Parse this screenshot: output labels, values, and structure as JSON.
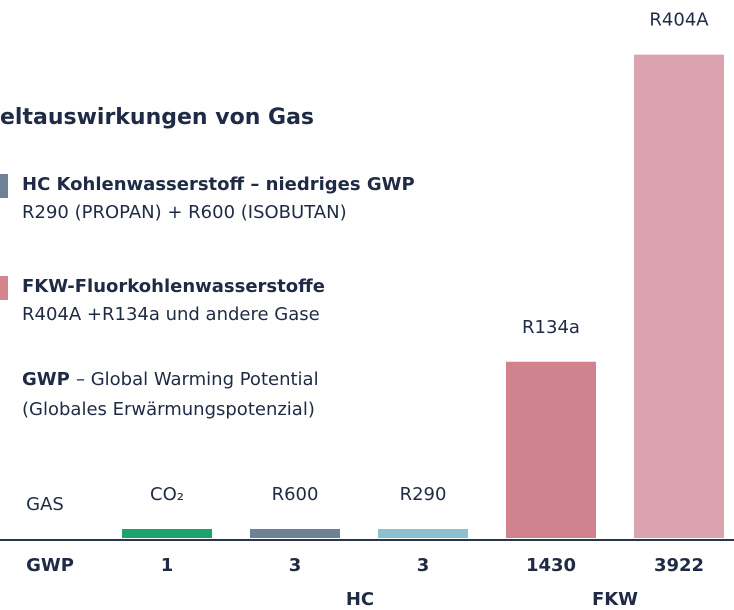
{
  "chart_data": {
    "type": "bar",
    "title": "eltauswirkungen von Gas",
    "legend": [
      {
        "name": "HC Kohlenwasserstoff – niedriges GWP",
        "text": "R290 (PROPAN) + R600 (ISOBUTAN)",
        "color": "#6e8296"
      },
      {
        "name": "FKW-Fluorkohlenwasserstoffe",
        "text": "R404A +R134a und andere Gase",
        "color": "#d4848f"
      }
    ],
    "note": {
      "term": "GWP",
      "text": "– Global Warming Potential",
      "text2": "(Globales Erwärmungspotenzial)"
    },
    "category_header": "GAS",
    "value_header": "GWP",
    "categories": [
      "CO₂",
      "R600",
      "R290",
      "R134a",
      "R404A"
    ],
    "values": [
      1,
      3,
      3,
      1430,
      3922
    ],
    "colors": [
      "#1aa36a",
      "#6e8296",
      "#8cc0cf",
      "#d0838f",
      "#dba3ad"
    ],
    "groups": [
      "HC",
      "FKW"
    ],
    "ylim": [
      0,
      4000
    ]
  }
}
